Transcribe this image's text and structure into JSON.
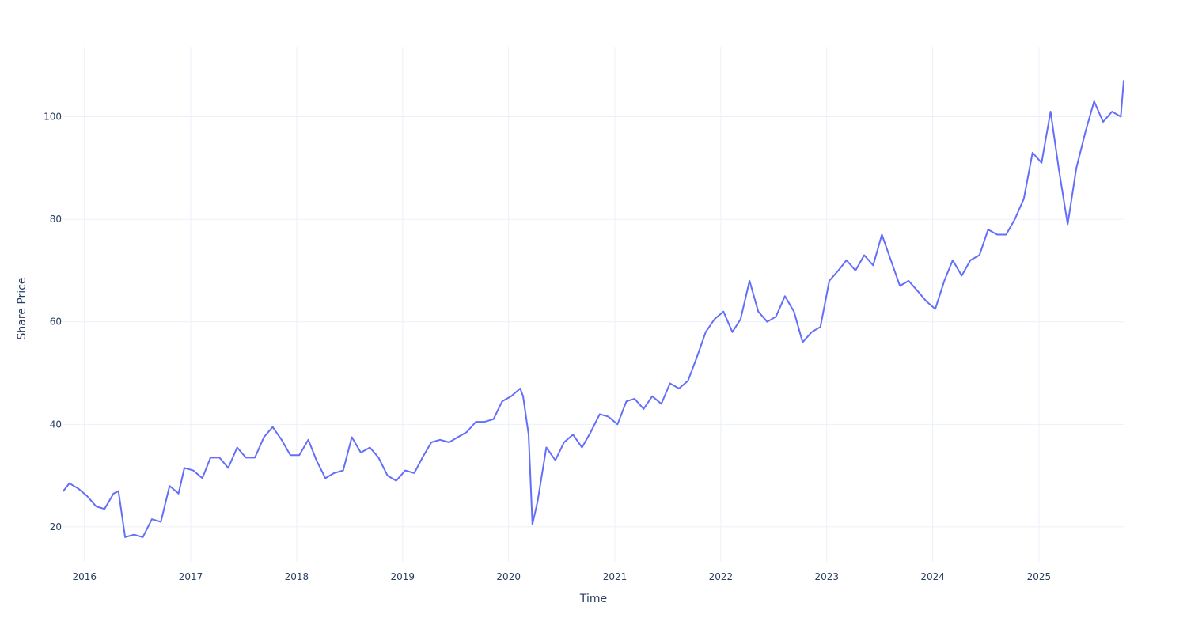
{
  "chart_data": {
    "type": "line",
    "title": "",
    "xlabel": "Time",
    "ylabel": "Share Price",
    "xlim": [
      "2015-10-20",
      "2025-10-20"
    ],
    "ylim": [
      13.2,
      113.5
    ],
    "grid": true,
    "legend": "none",
    "x_ticks": [
      "2016",
      "2017",
      "2018",
      "2019",
      "2020",
      "2021",
      "2022",
      "2023",
      "2024",
      "2025"
    ],
    "y_ticks": [
      20,
      40,
      60,
      80,
      100
    ],
    "line_color": "#636efa",
    "series": [
      {
        "x": [
          "2015-10-20",
          "2015-11-10",
          "2015-12-10",
          "2016-01-10",
          "2016-02-10",
          "2016-03-10",
          "2016-04-10",
          "2016-04-27",
          "2016-05-20",
          "2016-06-20",
          "2016-07-20",
          "2016-08-20",
          "2016-09-20",
          "2016-10-20",
          "2016-11-20",
          "2016-12-10",
          "2017-01-10",
          "2017-02-10",
          "2017-03-10",
          "2017-04-10",
          "2017-05-10",
          "2017-06-10",
          "2017-07-10",
          "2017-08-10",
          "2017-09-10",
          "2017-10-10",
          "2017-11-10",
          "2017-12-10",
          "2018-01-10",
          "2018-02-10",
          "2018-03-10",
          "2018-04-10",
          "2018-05-10",
          "2018-06-10",
          "2018-07-10",
          "2018-08-10",
          "2018-09-10",
          "2018-10-10",
          "2018-11-10",
          "2018-12-10",
          "2019-01-10",
          "2019-02-10",
          "2019-03-10",
          "2019-04-10",
          "2019-05-10",
          "2019-06-10",
          "2019-07-10",
          "2019-08-10",
          "2019-09-10",
          "2019-10-10",
          "2019-11-10",
          "2019-12-10",
          "2020-01-10",
          "2020-02-10",
          "2020-02-20",
          "2020-03-10",
          "2020-03-23",
          "2020-04-10",
          "2020-05-10",
          "2020-06-10",
          "2020-07-10",
          "2020-08-10",
          "2020-09-10",
          "2020-10-10",
          "2020-11-10",
          "2020-12-10",
          "2021-01-10",
          "2021-02-10",
          "2021-03-10",
          "2021-04-10",
          "2021-05-10",
          "2021-06-10",
          "2021-07-10",
          "2021-08-10",
          "2021-09-10",
          "2021-10-10",
          "2021-11-10",
          "2021-12-10",
          "2022-01-10",
          "2022-02-10",
          "2022-03-10",
          "2022-04-10",
          "2022-05-10",
          "2022-06-10",
          "2022-07-10",
          "2022-08-10",
          "2022-09-10",
          "2022-10-10",
          "2022-11-10",
          "2022-12-10",
          "2023-01-10",
          "2023-02-10",
          "2023-03-10",
          "2023-04-10",
          "2023-05-10",
          "2023-06-10",
          "2023-07-10",
          "2023-08-10",
          "2023-09-10",
          "2023-10-10",
          "2023-11-10",
          "2023-12-10",
          "2024-01-10",
          "2024-02-10",
          "2024-03-10",
          "2024-04-10",
          "2024-05-10",
          "2024-06-10",
          "2024-07-10",
          "2024-08-10",
          "2024-09-10",
          "2024-10-10",
          "2024-11-10",
          "2024-12-10",
          "2025-01-10",
          "2025-02-10",
          "2025-03-10",
          "2025-04-10",
          "2025-05-10",
          "2025-06-10",
          "2025-07-10",
          "2025-08-10",
          "2025-09-10",
          "2025-10-10",
          "2025-10-20"
        ],
        "y": [
          27,
          28.5,
          27.5,
          26,
          24,
          23.5,
          26.5,
          27,
          18,
          18.5,
          18,
          21.5,
          21,
          28,
          26.5,
          31.5,
          31,
          29.5,
          33.5,
          33.5,
          31.5,
          35.5,
          33.5,
          33.5,
          37.5,
          39.5,
          37,
          34,
          34,
          37,
          33,
          29.5,
          30.5,
          31,
          37.5,
          34.5,
          35.5,
          33.5,
          30,
          29,
          31,
          30.5,
          33.5,
          36.5,
          37,
          36.5,
          37.5,
          38.5,
          40.5,
          40.5,
          41,
          44.5,
          45.5,
          47,
          45.5,
          38,
          20.5,
          25,
          35.5,
          33,
          36.5,
          38,
          35.5,
          38.5,
          42,
          41.5,
          40,
          44.5,
          45,
          43,
          45.5,
          44,
          48,
          47,
          48.5,
          53,
          58,
          60.5,
          62,
          58,
          60.5,
          68,
          62,
          60,
          61,
          65,
          62,
          56,
          58,
          59,
          68,
          70,
          72,
          70,
          73,
          71,
          77,
          72,
          67,
          68,
          66,
          64,
          62.5,
          68,
          72,
          69,
          72,
          73,
          78,
          77,
          77,
          80,
          84,
          93,
          91,
          101,
          90,
          79,
          90,
          97,
          103,
          99,
          101,
          100,
          107
        ]
      }
    ]
  }
}
